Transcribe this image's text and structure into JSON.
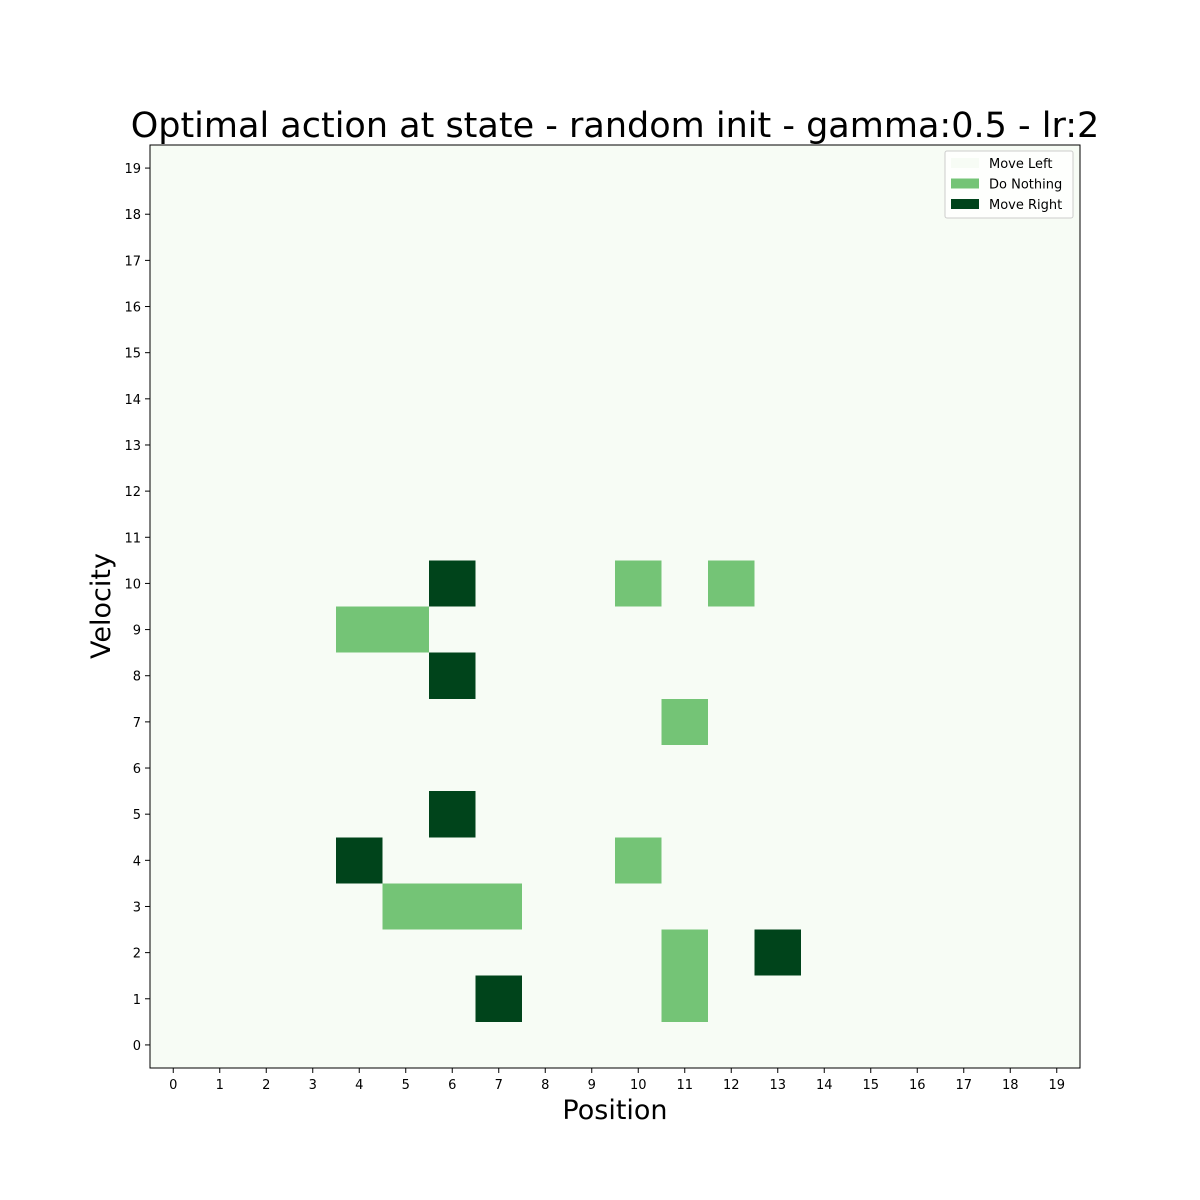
{
  "chart_data": {
    "type": "heatmap",
    "title": "Optimal action at state - random init - gamma:0.5 - lr:2",
    "xlabel": "Position",
    "ylabel": "Velocity",
    "x_ticks": [
      "0",
      "1",
      "2",
      "3",
      "4",
      "5",
      "6",
      "7",
      "8",
      "9",
      "10",
      "11",
      "12",
      "13",
      "14",
      "15",
      "16",
      "17",
      "18",
      "19"
    ],
    "y_ticks": [
      "0",
      "1",
      "2",
      "3",
      "4",
      "5",
      "6",
      "7",
      "8",
      "9",
      "10",
      "11",
      "12",
      "13",
      "14",
      "15",
      "16",
      "17",
      "18",
      "19"
    ],
    "grid": false,
    "legend_position": "top-right",
    "categories": [
      {
        "value": 0,
        "name": "Move Left",
        "color": "#f7fcf5"
      },
      {
        "value": 1,
        "name": "Do Nothing",
        "color": "#74c476"
      },
      {
        "value": 2,
        "name": "Move Right",
        "color": "#00441b"
      }
    ],
    "default_value": 0,
    "cells": [
      {
        "position": 7,
        "velocity": 1,
        "value": 2
      },
      {
        "position": 11,
        "velocity": 1,
        "value": 1
      },
      {
        "position": 11,
        "velocity": 2,
        "value": 1
      },
      {
        "position": 13,
        "velocity": 2,
        "value": 2
      },
      {
        "position": 5,
        "velocity": 3,
        "value": 1
      },
      {
        "position": 6,
        "velocity": 3,
        "value": 1
      },
      {
        "position": 7,
        "velocity": 3,
        "value": 1
      },
      {
        "position": 4,
        "velocity": 4,
        "value": 2
      },
      {
        "position": 10,
        "velocity": 4,
        "value": 1
      },
      {
        "position": 6,
        "velocity": 5,
        "value": 2
      },
      {
        "position": 11,
        "velocity": 7,
        "value": 1
      },
      {
        "position": 6,
        "velocity": 8,
        "value": 2
      },
      {
        "position": 4,
        "velocity": 9,
        "value": 1
      },
      {
        "position": 5,
        "velocity": 9,
        "value": 1
      },
      {
        "position": 6,
        "velocity": 10,
        "value": 2
      },
      {
        "position": 10,
        "velocity": 10,
        "value": 1
      },
      {
        "position": 12,
        "velocity": 10,
        "value": 1
      }
    ]
  }
}
